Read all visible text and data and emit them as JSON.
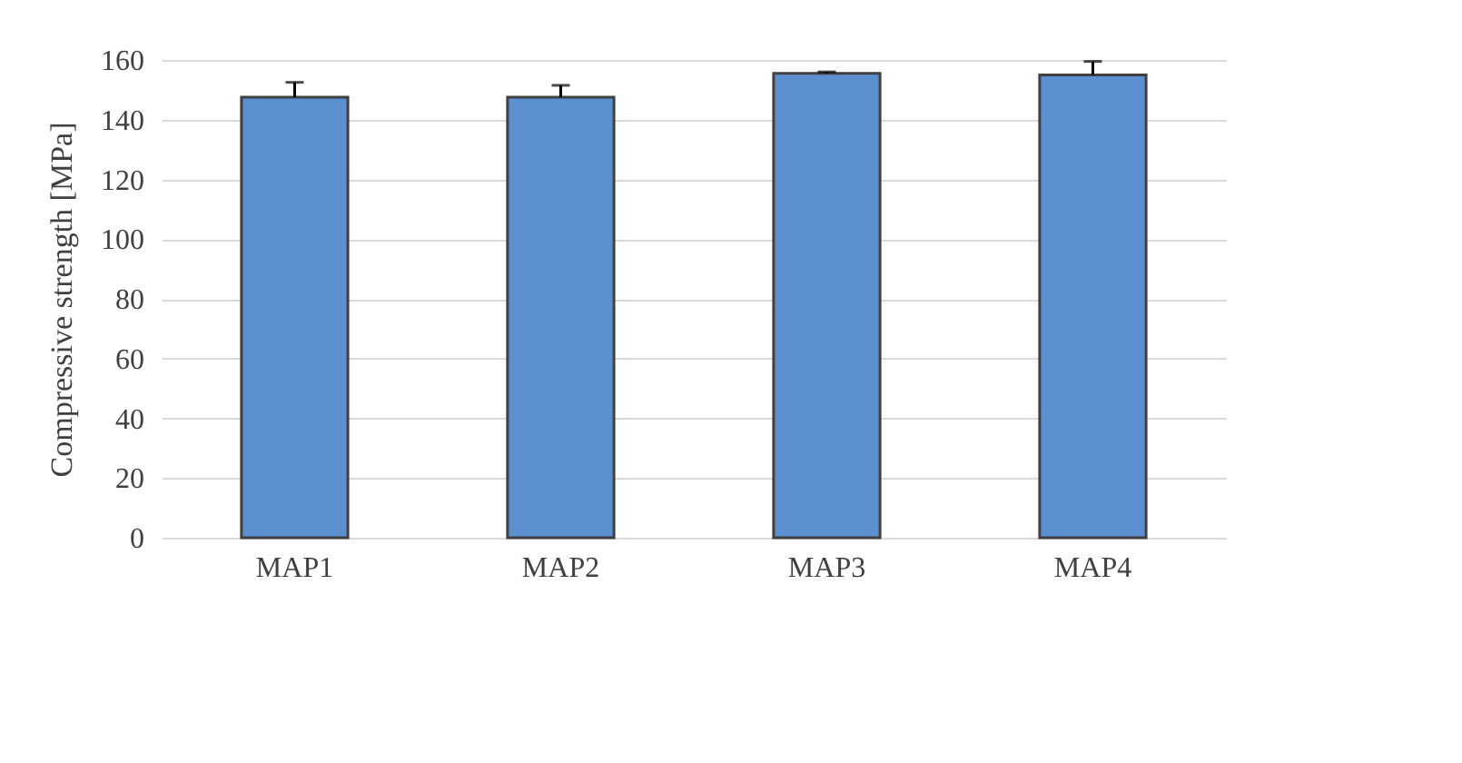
{
  "chart_data": {
    "type": "bar",
    "ylabel": "Compressive strength [MPa]",
    "categories": [
      "MAP1",
      "MAP2",
      "MAP3",
      "MAP4"
    ],
    "values": [
      147.5,
      147.5,
      155.5,
      155
    ],
    "errors": [
      [
        147.5,
        152.5
      ],
      [
        147.5,
        151.5
      ],
      [
        155.5,
        156
      ],
      [
        155,
        159.5
      ]
    ],
    "color": "#5b8fd0",
    "ylim": [
      0,
      160
    ],
    "yticks": [
      0,
      20,
      40,
      60,
      80,
      100,
      120,
      140,
      160
    ],
    "grid": "y"
  }
}
